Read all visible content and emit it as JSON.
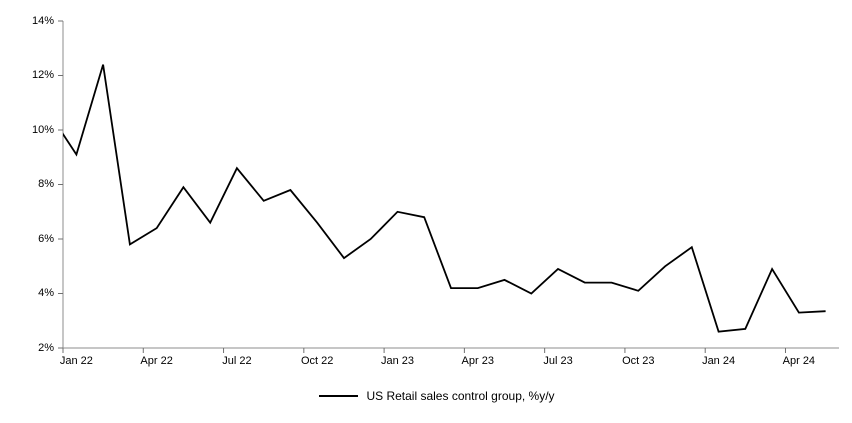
{
  "chart_data": {
    "type": "line",
    "title": "",
    "xlabel": "",
    "ylabel": "",
    "ylim": [
      2,
      14
    ],
    "y_tick_step": 2,
    "grid": false,
    "legend_position": "bottom-center",
    "axis_color": "#8c8c8c",
    "tick_color": "#707070",
    "line_color": "#000000",
    "y_tick_labels_top_to_bottom": [
      "14%",
      "12%",
      "10%",
      "8%",
      "6%",
      "4%",
      "2%"
    ],
    "x_tick_labels": [
      "Jan 22",
      "Apr 22",
      "Jul 22",
      "Oct 22",
      "Jan 23",
      "Apr 23",
      "Jul 23",
      "Oct 23",
      "Jan 24",
      "Apr 24"
    ],
    "x_label_every_n_months": 3,
    "clipped_lead_in_point": {
      "month": "Dec 21",
      "value": 10.6
    },
    "categories": [
      "Jan 22",
      "Feb 22",
      "Mar 22",
      "Apr 22",
      "May 22",
      "Jun 22",
      "Jul 22",
      "Aug 22",
      "Sep 22",
      "Oct 22",
      "Nov 22",
      "Dec 22",
      "Jan 23",
      "Feb 23",
      "Mar 23",
      "Apr 23",
      "May 23",
      "Jun 23",
      "Jul 23",
      "Aug 23",
      "Sep 23",
      "Oct 23",
      "Nov 23",
      "Dec 23",
      "Jan 24",
      "Feb 24",
      "Mar 24",
      "Apr 24",
      "May 24"
    ],
    "series": [
      {
        "name": "US Retail sales control group, %y/y",
        "color": "#000000",
        "values": [
          9.1,
          12.4,
          5.8,
          6.4,
          7.9,
          6.6,
          8.6,
          7.4,
          7.8,
          6.6,
          5.3,
          6.0,
          7.0,
          6.8,
          4.2,
          4.2,
          4.5,
          4.0,
          4.9,
          4.4,
          4.4,
          4.1,
          5.0,
          5.7,
          2.6,
          2.7,
          4.9,
          3.3,
          3.35
        ]
      }
    ]
  },
  "legend": {
    "label": "US Retail sales control group, %y/y"
  }
}
